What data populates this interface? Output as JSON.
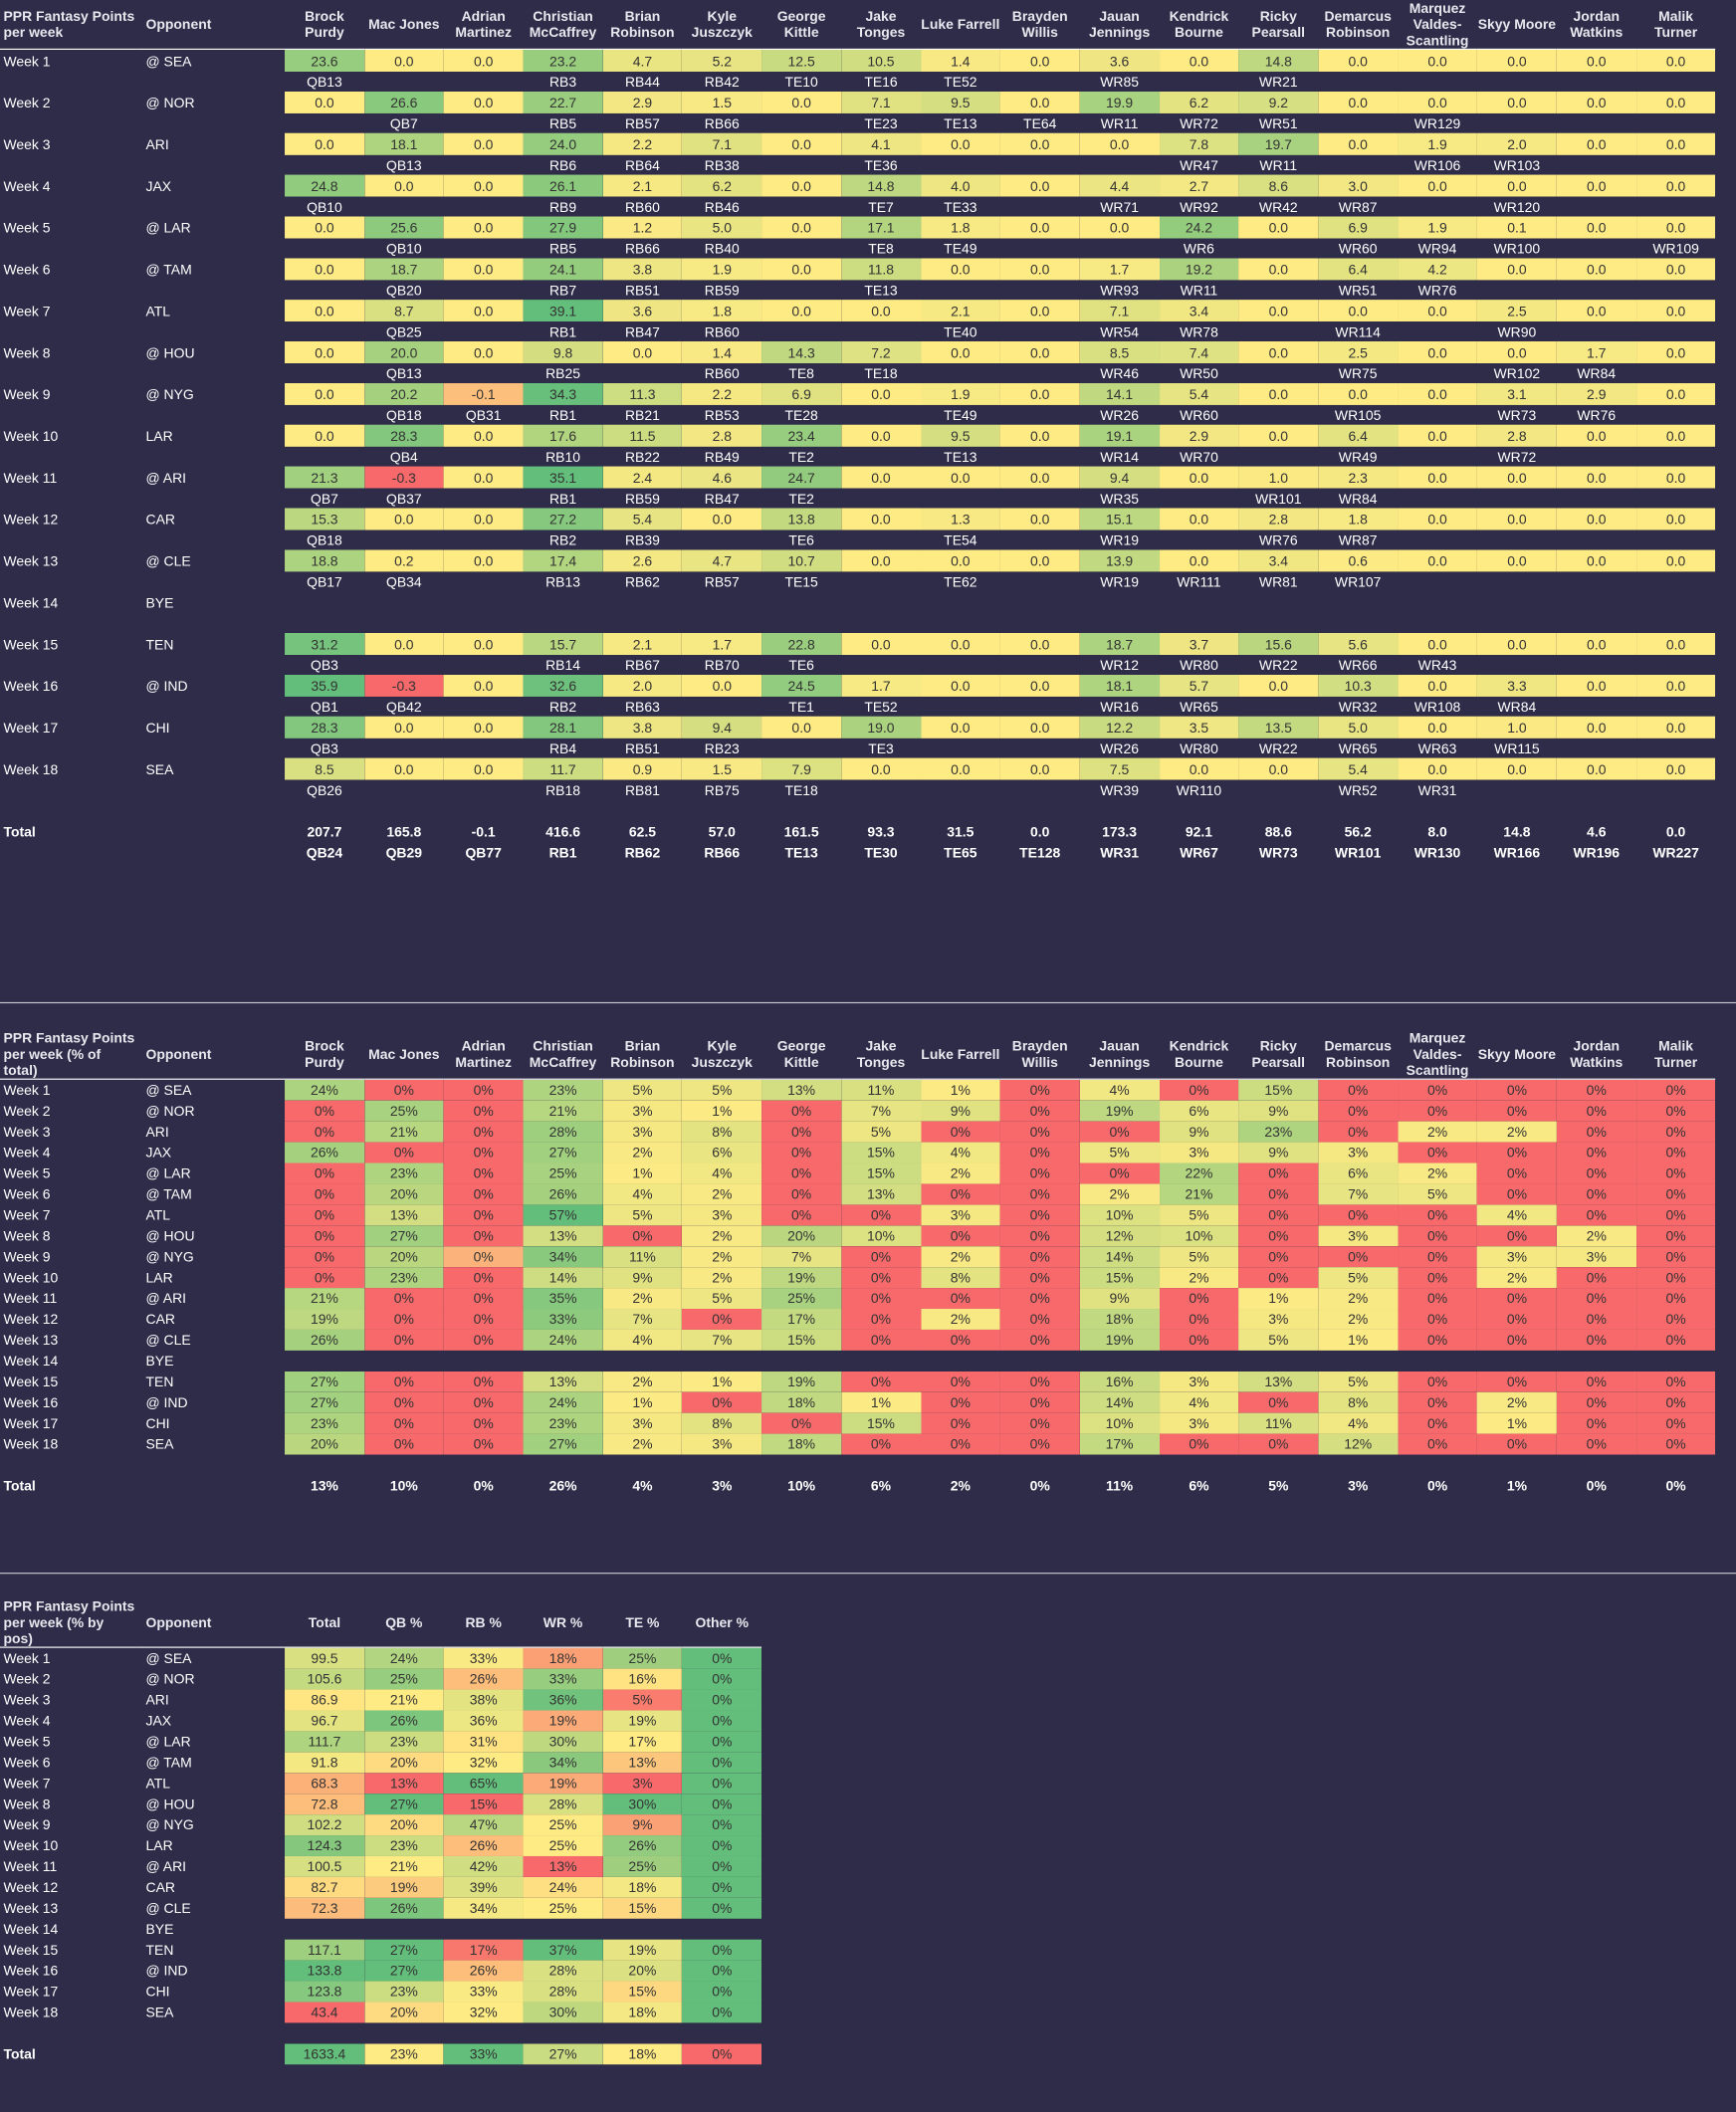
{
  "players": [
    "Brock Purdy",
    "Mac Jones",
    "Adrian Martinez",
    "Christian McCaffrey",
    "Brian Robinson",
    "Kyle Juszczyk",
    "George Kittle",
    "Jake Tonges",
    "Luke Farrell",
    "Brayden Willis",
    "Jauan Jennings",
    "Kendrick Bourne",
    "Ricky Pearsall",
    "Demarcus Robinson",
    "Marquez Valdes-Scantling",
    "Skyy Moore",
    "Jordan Watkins",
    "Malik Turner"
  ],
  "headers": {
    "t1_title": "PPR Fantasy Points per week",
    "t2_title": "PPR Fantasy Points per week (% of total)",
    "t3_title": "PPR Fantasy Points per week (% by pos)",
    "opponent": "Opponent",
    "t3_cols": [
      "Total",
      "QB %",
      "RB %",
      "WR %",
      "TE %",
      "Other %"
    ],
    "total_label": "Total"
  },
  "weeks": [
    {
      "w": "Week 1",
      "o": "@ SEA",
      "pts": [
        "23.6",
        "0.0",
        "0.0",
        "23.2",
        "4.7",
        "5.2",
        "12.5",
        "10.5",
        "1.4",
        "0.0",
        "3.6",
        "0.0",
        "14.8",
        "0.0",
        "0.0",
        "0.0",
        "0.0",
        "0.0"
      ],
      "rk": [
        "QB13",
        "",
        "",
        "RB3",
        "RB44",
        "RB42",
        "TE10",
        "TE16",
        "TE52",
        "",
        "WR85",
        "",
        "WR21",
        "",
        "",
        "",
        "",
        ""
      ],
      "pct": [
        "24%",
        "0%",
        "0%",
        "23%",
        "5%",
        "5%",
        "13%",
        "11%",
        "1%",
        "0%",
        "4%",
        "0%",
        "15%",
        "0%",
        "0%",
        "0%",
        "0%",
        "0%"
      ],
      "pos": {
        "total": "99.5",
        "qb": "24%",
        "rb": "33%",
        "wr": "18%",
        "te": "25%",
        "other": "0%"
      }
    },
    {
      "w": "Week 2",
      "o": "@ NOR",
      "pts": [
        "0.0",
        "26.6",
        "0.0",
        "22.7",
        "2.9",
        "1.5",
        "0.0",
        "7.1",
        "9.5",
        "0.0",
        "19.9",
        "6.2",
        "9.2",
        "0.0",
        "0.0",
        "0.0",
        "0.0",
        "0.0"
      ],
      "rk": [
        "",
        "QB7",
        "",
        "RB5",
        "RB57",
        "RB66",
        "",
        "TE23",
        "TE13",
        "TE64",
        "WR11",
        "WR72",
        "WR51",
        "",
        "WR129",
        "",
        "",
        ""
      ],
      "pct": [
        "0%",
        "25%",
        "0%",
        "21%",
        "3%",
        "1%",
        "0%",
        "7%",
        "9%",
        "0%",
        "19%",
        "6%",
        "9%",
        "0%",
        "0%",
        "0%",
        "0%",
        "0%"
      ],
      "pos": {
        "total": "105.6",
        "qb": "25%",
        "rb": "26%",
        "wr": "33%",
        "te": "16%",
        "other": "0%"
      }
    },
    {
      "w": "Week 3",
      "o": "ARI",
      "pts": [
        "0.0",
        "18.1",
        "0.0",
        "24.0",
        "2.2",
        "7.1",
        "0.0",
        "4.1",
        "0.0",
        "0.0",
        "0.0",
        "7.8",
        "19.7",
        "0.0",
        "1.9",
        "2.0",
        "0.0",
        "0.0"
      ],
      "rk": [
        "",
        "QB13",
        "",
        "RB6",
        "RB64",
        "RB38",
        "",
        "TE36",
        "",
        "",
        "",
        "WR47",
        "WR11",
        "",
        "WR106",
        "WR103",
        "",
        ""
      ],
      "pct": [
        "0%",
        "21%",
        "0%",
        "28%",
        "3%",
        "8%",
        "0%",
        "5%",
        "0%",
        "0%",
        "0%",
        "9%",
        "23%",
        "0%",
        "2%",
        "2%",
        "0%",
        "0%"
      ],
      "pos": {
        "total": "86.9",
        "qb": "21%",
        "rb": "38%",
        "wr": "36%",
        "te": "5%",
        "other": "0%"
      }
    },
    {
      "w": "Week 4",
      "o": "JAX",
      "pts": [
        "24.8",
        "0.0",
        "0.0",
        "26.1",
        "2.1",
        "6.2",
        "0.0",
        "14.8",
        "4.0",
        "0.0",
        "4.4",
        "2.7",
        "8.6",
        "3.0",
        "0.0",
        "0.0",
        "0.0",
        "0.0"
      ],
      "rk": [
        "QB10",
        "",
        "",
        "RB9",
        "RB60",
        "RB46",
        "",
        "TE7",
        "TE33",
        "",
        "WR71",
        "WR92",
        "WR42",
        "WR87",
        "",
        "WR120",
        "",
        ""
      ],
      "pct": [
        "26%",
        "0%",
        "0%",
        "27%",
        "2%",
        "6%",
        "0%",
        "15%",
        "4%",
        "0%",
        "5%",
        "3%",
        "9%",
        "3%",
        "0%",
        "0%",
        "0%",
        "0%"
      ],
      "pos": {
        "total": "96.7",
        "qb": "26%",
        "rb": "36%",
        "wr": "19%",
        "te": "19%",
        "other": "0%"
      }
    },
    {
      "w": "Week 5",
      "o": "@ LAR",
      "pts": [
        "0.0",
        "25.6",
        "0.0",
        "27.9",
        "1.2",
        "5.0",
        "0.0",
        "17.1",
        "1.8",
        "0.0",
        "0.0",
        "24.2",
        "0.0",
        "6.9",
        "1.9",
        "0.1",
        "0.0",
        "0.0"
      ],
      "rk": [
        "",
        "QB10",
        "",
        "RB5",
        "RB66",
        "RB40",
        "",
        "TE8",
        "TE49",
        "",
        "",
        "WR6",
        "",
        "WR60",
        "WR94",
        "WR100",
        "",
        "WR109"
      ],
      "pct": [
        "0%",
        "23%",
        "0%",
        "25%",
        "1%",
        "4%",
        "0%",
        "15%",
        "2%",
        "0%",
        "0%",
        "22%",
        "0%",
        "6%",
        "2%",
        "0%",
        "0%",
        "0%"
      ],
      "pos": {
        "total": "111.7",
        "qb": "23%",
        "rb": "31%",
        "wr": "30%",
        "te": "17%",
        "other": "0%"
      }
    },
    {
      "w": "Week 6",
      "o": "@ TAM",
      "pts": [
        "0.0",
        "18.7",
        "0.0",
        "24.1",
        "3.8",
        "1.9",
        "0.0",
        "11.8",
        "0.0",
        "0.0",
        "1.7",
        "19.2",
        "0.0",
        "6.4",
        "4.2",
        "0.0",
        "0.0",
        "0.0"
      ],
      "rk": [
        "",
        "QB20",
        "",
        "RB7",
        "RB51",
        "RB59",
        "",
        "TE13",
        "",
        "",
        "WR93",
        "WR11",
        "",
        "WR51",
        "WR76",
        "",
        "",
        ""
      ],
      "pct": [
        "0%",
        "20%",
        "0%",
        "26%",
        "4%",
        "2%",
        "0%",
        "13%",
        "0%",
        "0%",
        "2%",
        "21%",
        "0%",
        "7%",
        "5%",
        "0%",
        "0%",
        "0%"
      ],
      "pos": {
        "total": "91.8",
        "qb": "20%",
        "rb": "32%",
        "wr": "34%",
        "te": "13%",
        "other": "0%"
      }
    },
    {
      "w": "Week 7",
      "o": "ATL",
      "pts": [
        "0.0",
        "8.7",
        "0.0",
        "39.1",
        "3.6",
        "1.8",
        "0.0",
        "0.0",
        "2.1",
        "0.0",
        "7.1",
        "3.4",
        "0.0",
        "0.0",
        "0.0",
        "2.5",
        "0.0",
        "0.0"
      ],
      "rk": [
        "",
        "QB25",
        "",
        "RB1",
        "RB47",
        "RB60",
        "",
        "",
        "TE40",
        "",
        "WR54",
        "WR78",
        "",
        "WR114",
        "",
        "WR90",
        "",
        ""
      ],
      "pct": [
        "0%",
        "13%",
        "0%",
        "57%",
        "5%",
        "3%",
        "0%",
        "0%",
        "3%",
        "0%",
        "10%",
        "5%",
        "0%",
        "0%",
        "0%",
        "4%",
        "0%",
        "0%"
      ],
      "pos": {
        "total": "68.3",
        "qb": "13%",
        "rb": "65%",
        "wr": "19%",
        "te": "3%",
        "other": "0%"
      }
    },
    {
      "w": "Week 8",
      "o": "@ HOU",
      "pts": [
        "0.0",
        "20.0",
        "0.0",
        "9.8",
        "0.0",
        "1.4",
        "14.3",
        "7.2",
        "0.0",
        "0.0",
        "8.5",
        "7.4",
        "0.0",
        "2.5",
        "0.0",
        "0.0",
        "1.7",
        "0.0"
      ],
      "rk": [
        "",
        "QB13",
        "",
        "RB25",
        "",
        "RB60",
        "TE8",
        "TE18",
        "",
        "",
        "WR46",
        "WR50",
        "",
        "WR75",
        "",
        "WR102",
        "WR84",
        ""
      ],
      "pct": [
        "0%",
        "27%",
        "0%",
        "13%",
        "0%",
        "2%",
        "20%",
        "10%",
        "0%",
        "0%",
        "12%",
        "10%",
        "0%",
        "3%",
        "0%",
        "0%",
        "2%",
        "0%"
      ],
      "pos": {
        "total": "72.8",
        "qb": "27%",
        "rb": "15%",
        "wr": "28%",
        "te": "30%",
        "other": "0%"
      }
    },
    {
      "w": "Week 9",
      "o": "@ NYG",
      "pts": [
        "0.0",
        "20.2",
        "-0.1",
        "34.3",
        "11.3",
        "2.2",
        "6.9",
        "0.0",
        "1.9",
        "0.0",
        "14.1",
        "5.4",
        "0.0",
        "0.0",
        "0.0",
        "3.1",
        "2.9",
        "0.0"
      ],
      "rk": [
        "",
        "QB18",
        "QB31",
        "RB1",
        "RB21",
        "RB53",
        "TE28",
        "",
        "TE49",
        "",
        "WR26",
        "WR60",
        "",
        "WR105",
        "",
        "WR73",
        "WR76",
        ""
      ],
      "pct": [
        "0%",
        "20%",
        "0%",
        "34%",
        "11%",
        "2%",
        "7%",
        "0%",
        "2%",
        "0%",
        "14%",
        "5%",
        "0%",
        "0%",
        "0%",
        "3%",
        "3%",
        "0%"
      ],
      "pos": {
        "total": "102.2",
        "qb": "20%",
        "rb": "47%",
        "wr": "25%",
        "te": "9%",
        "other": "0%"
      }
    },
    {
      "w": "Week 10",
      "o": "LAR",
      "pts": [
        "0.0",
        "28.3",
        "0.0",
        "17.6",
        "11.5",
        "2.8",
        "23.4",
        "0.0",
        "9.5",
        "0.0",
        "19.1",
        "2.9",
        "0.0",
        "6.4",
        "0.0",
        "2.8",
        "0.0",
        "0.0"
      ],
      "rk": [
        "",
        "QB4",
        "",
        "RB10",
        "RB22",
        "RB49",
        "TE2",
        "",
        "TE13",
        "",
        "WR14",
        "WR70",
        "",
        "WR49",
        "",
        "WR72",
        "",
        ""
      ],
      "pct": [
        "0%",
        "23%",
        "0%",
        "14%",
        "9%",
        "2%",
        "19%",
        "0%",
        "8%",
        "0%",
        "15%",
        "2%",
        "0%",
        "5%",
        "0%",
        "2%",
        "0%",
        "0%"
      ],
      "pos": {
        "total": "124.3",
        "qb": "23%",
        "rb": "26%",
        "wr": "25%",
        "te": "26%",
        "other": "0%"
      }
    },
    {
      "w": "Week 11",
      "o": "@ ARI",
      "pts": [
        "21.3",
        "-0.3",
        "0.0",
        "35.1",
        "2.4",
        "4.6",
        "24.7",
        "0.0",
        "0.0",
        "0.0",
        "9.4",
        "0.0",
        "1.0",
        "2.3",
        "0.0",
        "0.0",
        "0.0",
        "0.0"
      ],
      "rk": [
        "QB7",
        "QB37",
        "",
        "RB1",
        "RB59",
        "RB47",
        "TE2",
        "",
        "",
        "",
        "WR35",
        "",
        "WR101",
        "WR84",
        "",
        "",
        "",
        ""
      ],
      "pct": [
        "21%",
        "0%",
        "0%",
        "35%",
        "2%",
        "5%",
        "25%",
        "0%",
        "0%",
        "0%",
        "9%",
        "0%",
        "1%",
        "2%",
        "0%",
        "0%",
        "0%",
        "0%"
      ],
      "pos": {
        "total": "100.5",
        "qb": "21%",
        "rb": "42%",
        "wr": "13%",
        "te": "25%",
        "other": "0%"
      }
    },
    {
      "w": "Week 12",
      "o": "CAR",
      "pts": [
        "15.3",
        "0.0",
        "0.0",
        "27.2",
        "5.4",
        "0.0",
        "13.8",
        "0.0",
        "1.3",
        "0.0",
        "15.1",
        "0.0",
        "2.8",
        "1.8",
        "0.0",
        "0.0",
        "0.0",
        "0.0"
      ],
      "rk": [
        "QB18",
        "",
        "",
        "RB2",
        "RB39",
        "",
        "TE6",
        "",
        "TE54",
        "",
        "WR19",
        "",
        "WR76",
        "WR87",
        "",
        "",
        "",
        ""
      ],
      "pct": [
        "19%",
        "0%",
        "0%",
        "33%",
        "7%",
        "0%",
        "17%",
        "0%",
        "2%",
        "0%",
        "18%",
        "0%",
        "3%",
        "2%",
        "0%",
        "0%",
        "0%",
        "0%"
      ],
      "pos": {
        "total": "82.7",
        "qb": "19%",
        "rb": "39%",
        "wr": "24%",
        "te": "18%",
        "other": "0%"
      }
    },
    {
      "w": "Week 13",
      "o": "@ CLE",
      "pts": [
        "18.8",
        "0.2",
        "0.0",
        "17.4",
        "2.6",
        "4.7",
        "10.7",
        "0.0",
        "0.0",
        "0.0",
        "13.9",
        "0.0",
        "3.4",
        "0.6",
        "0.0",
        "0.0",
        "0.0",
        "0.0"
      ],
      "rk": [
        "QB17",
        "QB34",
        "",
        "RB13",
        "RB62",
        "RB57",
        "TE15",
        "",
        "TE62",
        "",
        "WR19",
        "WR111",
        "WR81",
        "WR107",
        "",
        "",
        "",
        ""
      ],
      "pct": [
        "26%",
        "0%",
        "0%",
        "24%",
        "4%",
        "7%",
        "15%",
        "0%",
        "0%",
        "0%",
        "19%",
        "0%",
        "5%",
        "1%",
        "0%",
        "0%",
        "0%",
        "0%"
      ],
      "pos": {
        "total": "72.3",
        "qb": "26%",
        "rb": "34%",
        "wr": "25%",
        "te": "15%",
        "other": "0%"
      }
    },
    {
      "w": "Week 14",
      "o": "BYE",
      "bye": true
    },
    {
      "w": "Week 15",
      "o": "TEN",
      "pts": [
        "31.2",
        "0.0",
        "0.0",
        "15.7",
        "2.1",
        "1.7",
        "22.8",
        "0.0",
        "0.0",
        "0.0",
        "18.7",
        "3.7",
        "15.6",
        "5.6",
        "0.0",
        "0.0",
        "0.0",
        "0.0"
      ],
      "rk": [
        "QB3",
        "",
        "",
        "RB14",
        "RB67",
        "RB70",
        "TE6",
        "",
        "",
        "",
        "WR12",
        "WR80",
        "WR22",
        "WR66",
        "WR43",
        "",
        "",
        ""
      ],
      "pct": [
        "27%",
        "0%",
        "0%",
        "13%",
        "2%",
        "1%",
        "19%",
        "0%",
        "0%",
        "0%",
        "16%",
        "3%",
        "13%",
        "5%",
        "0%",
        "0%",
        "0%",
        "0%"
      ],
      "pos": {
        "total": "117.1",
        "qb": "27%",
        "rb": "17%",
        "wr": "37%",
        "te": "19%",
        "other": "0%"
      }
    },
    {
      "w": "Week 16",
      "o": "@ IND",
      "pts": [
        "35.9",
        "-0.3",
        "0.0",
        "32.6",
        "2.0",
        "0.0",
        "24.5",
        "1.7",
        "0.0",
        "0.0",
        "18.1",
        "5.7",
        "0.0",
        "10.3",
        "0.0",
        "3.3",
        "0.0",
        "0.0"
      ],
      "rk": [
        "QB1",
        "QB42",
        "",
        "RB2",
        "RB63",
        "",
        "TE1",
        "TE52",
        "",
        "",
        "WR16",
        "WR65",
        "",
        "WR32",
        "WR108",
        "WR84",
        "",
        ""
      ],
      "pct": [
        "27%",
        "0%",
        "0%",
        "24%",
        "1%",
        "0%",
        "18%",
        "1%",
        "0%",
        "0%",
        "14%",
        "4%",
        "0%",
        "8%",
        "0%",
        "2%",
        "0%",
        "0%"
      ],
      "pos": {
        "total": "133.8",
        "qb": "27%",
        "rb": "26%",
        "wr": "28%",
        "te": "20%",
        "other": "0%"
      }
    },
    {
      "w": "Week 17",
      "o": "CHI",
      "pts": [
        "28.3",
        "0.0",
        "0.0",
        "28.1",
        "3.8",
        "9.4",
        "0.0",
        "19.0",
        "0.0",
        "0.0",
        "12.2",
        "3.5",
        "13.5",
        "5.0",
        "0.0",
        "1.0",
        "0.0",
        "0.0"
      ],
      "rk": [
        "QB3",
        "",
        "",
        "RB4",
        "RB51",
        "RB23",
        "",
        "TE3",
        "",
        "",
        "WR26",
        "WR80",
        "WR22",
        "WR65",
        "WR63",
        "WR115",
        "",
        ""
      ],
      "pct": [
        "23%",
        "0%",
        "0%",
        "23%",
        "3%",
        "8%",
        "0%",
        "15%",
        "0%",
        "0%",
        "10%",
        "3%",
        "11%",
        "4%",
        "0%",
        "1%",
        "0%",
        "0%"
      ],
      "pos": {
        "total": "123.8",
        "qb": "23%",
        "rb": "33%",
        "wr": "28%",
        "te": "15%",
        "other": "0%"
      }
    },
    {
      "w": "Week 18",
      "o": "SEA",
      "pts": [
        "8.5",
        "0.0",
        "0.0",
        "11.7",
        "0.9",
        "1.5",
        "7.9",
        "0.0",
        "0.0",
        "0.0",
        "7.5",
        "0.0",
        "0.0",
        "5.4",
        "0.0",
        "0.0",
        "0.0",
        "0.0"
      ],
      "rk": [
        "QB26",
        "",
        "",
        "RB18",
        "RB81",
        "RB75",
        "TE18",
        "",
        "",
        "",
        "WR39",
        "WR110",
        "",
        "WR52",
        "WR31",
        "",
        "",
        ""
      ],
      "pct": [
        "20%",
        "0%",
        "0%",
        "27%",
        "2%",
        "3%",
        "18%",
        "0%",
        "0%",
        "0%",
        "17%",
        "0%",
        "0%",
        "12%",
        "0%",
        "0%",
        "0%",
        "0%"
      ],
      "pos": {
        "total": "43.4",
        "qb": "20%",
        "rb": "32%",
        "wr": "30%",
        "te": "18%",
        "other": "0%"
      }
    }
  ],
  "totals": {
    "pts": [
      "207.7",
      "165.8",
      "-0.1",
      "416.6",
      "62.5",
      "57.0",
      "161.5",
      "93.3",
      "31.5",
      "0.0",
      "173.3",
      "92.1",
      "88.6",
      "56.2",
      "8.0",
      "14.8",
      "4.6",
      "0.0"
    ],
    "rk": [
      "QB24",
      "QB29",
      "QB77",
      "RB1",
      "RB62",
      "RB66",
      "TE13",
      "TE30",
      "TE65",
      "TE128",
      "WR31",
      "WR67",
      "WR73",
      "WR101",
      "WR130",
      "WR166",
      "WR196",
      "WR227"
    ],
    "pct": [
      "13%",
      "10%",
      "0%",
      "26%",
      "4%",
      "3%",
      "10%",
      "6%",
      "2%",
      "0%",
      "11%",
      "6%",
      "5%",
      "3%",
      "0%",
      "1%",
      "0%",
      "0%"
    ],
    "pos": {
      "total": "1633.4",
      "qb": "23%",
      "rb": "33%",
      "wr": "27%",
      "te": "18%",
      "other": "0%"
    }
  },
  "colors": {
    "background": "#2e2c49",
    "low": "#f8696b",
    "mid": "#ffeb84",
    "high": "#63be7b"
  }
}
